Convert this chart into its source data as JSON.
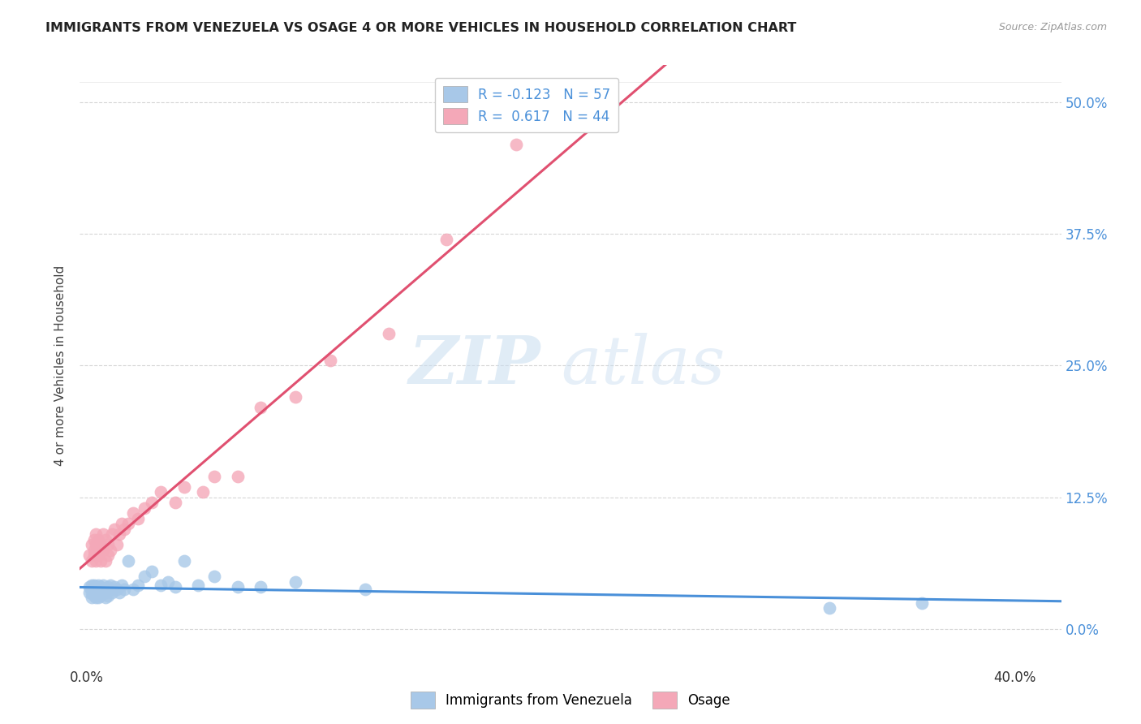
{
  "title": "IMMIGRANTS FROM VENEZUELA VS OSAGE 4 OR MORE VEHICLES IN HOUSEHOLD CORRELATION CHART",
  "source": "Source: ZipAtlas.com",
  "ylabel_label": "4 or more Vehicles in Household",
  "xlim": [
    -0.003,
    0.42
  ],
  "ylim": [
    -0.035,
    0.535
  ],
  "xtick_vals": [
    0.0,
    0.4
  ],
  "xtick_labels": [
    "0.0%",
    "40.0%"
  ],
  "ytick_vals": [
    0.0,
    0.125,
    0.25,
    0.375,
    0.5
  ],
  "ytick_labels": [
    "0.0%",
    "12.5%",
    "25.0%",
    "37.5%",
    "50.0%"
  ],
  "blue_R": -0.123,
  "blue_N": 57,
  "pink_R": 0.617,
  "pink_N": 44,
  "blue_color": "#a8c8e8",
  "pink_color": "#f4a8b8",
  "blue_line_color": "#4a90d9",
  "pink_line_color": "#e05070",
  "legend_label_blue": "Immigrants from Venezuela",
  "legend_label_pink": "Osage",
  "watermark_zip": "ZIP",
  "watermark_atlas": "atlas",
  "blue_scatter_x": [
    0.001,
    0.001,
    0.002,
    0.002,
    0.002,
    0.002,
    0.003,
    0.003,
    0.003,
    0.003,
    0.003,
    0.004,
    0.004,
    0.004,
    0.004,
    0.004,
    0.005,
    0.005,
    0.005,
    0.005,
    0.005,
    0.006,
    0.006,
    0.006,
    0.007,
    0.007,
    0.007,
    0.008,
    0.008,
    0.008,
    0.009,
    0.009,
    0.01,
    0.01,
    0.011,
    0.012,
    0.013,
    0.014,
    0.015,
    0.016,
    0.018,
    0.02,
    0.022,
    0.025,
    0.028,
    0.032,
    0.035,
    0.038,
    0.042,
    0.048,
    0.055,
    0.065,
    0.075,
    0.09,
    0.12,
    0.32,
    0.36
  ],
  "blue_scatter_y": [
    0.035,
    0.04,
    0.03,
    0.038,
    0.042,
    0.035,
    0.032,
    0.038,
    0.04,
    0.035,
    0.042,
    0.03,
    0.035,
    0.038,
    0.04,
    0.032,
    0.035,
    0.038,
    0.03,
    0.042,
    0.035,
    0.038,
    0.032,
    0.04,
    0.035,
    0.038,
    0.042,
    0.03,
    0.035,
    0.038,
    0.04,
    0.032,
    0.038,
    0.042,
    0.035,
    0.04,
    0.038,
    0.035,
    0.042,
    0.038,
    0.065,
    0.038,
    0.042,
    0.05,
    0.055,
    0.042,
    0.045,
    0.04,
    0.065,
    0.042,
    0.05,
    0.04,
    0.04,
    0.045,
    0.038,
    0.02,
    0.025
  ],
  "pink_scatter_x": [
    0.001,
    0.002,
    0.002,
    0.003,
    0.003,
    0.003,
    0.004,
    0.004,
    0.004,
    0.005,
    0.005,
    0.005,
    0.006,
    0.006,
    0.007,
    0.007,
    0.008,
    0.008,
    0.009,
    0.009,
    0.01,
    0.011,
    0.012,
    0.013,
    0.014,
    0.015,
    0.016,
    0.018,
    0.02,
    0.022,
    0.025,
    0.028,
    0.032,
    0.038,
    0.042,
    0.05,
    0.055,
    0.065,
    0.075,
    0.09,
    0.105,
    0.13,
    0.155,
    0.185
  ],
  "pink_scatter_y": [
    0.07,
    0.065,
    0.08,
    0.07,
    0.075,
    0.085,
    0.065,
    0.08,
    0.09,
    0.07,
    0.075,
    0.085,
    0.065,
    0.08,
    0.075,
    0.09,
    0.065,
    0.085,
    0.07,
    0.08,
    0.075,
    0.09,
    0.095,
    0.08,
    0.09,
    0.1,
    0.095,
    0.1,
    0.11,
    0.105,
    0.115,
    0.12,
    0.13,
    0.12,
    0.135,
    0.13,
    0.145,
    0.145,
    0.21,
    0.22,
    0.255,
    0.28,
    0.37,
    0.46
  ]
}
